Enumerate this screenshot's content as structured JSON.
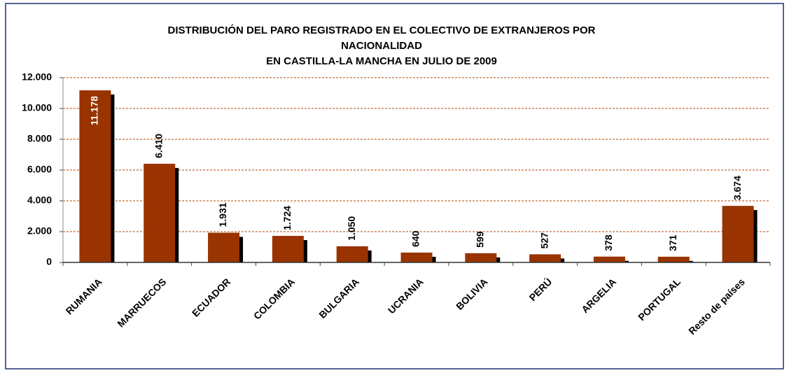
{
  "chart_data": {
    "type": "bar",
    "title": [
      "DISTRIBUCIÓN DEL PARO REGISTRADO EN EL COLECTIVO DE EXTRANJEROS POR",
      "NACIONALIDAD",
      "EN CASTILLA-LA  MANCHA EN JULIO DE 2009"
    ],
    "categories": [
      "RUMANIA",
      "MARRUECOS",
      "ECUADOR",
      "COLOMBIA",
      "BULGARIA",
      "UCRANIA",
      "BOLIVIA",
      "PERÚ",
      "ARGELIA",
      "PORTUGAL",
      "Resto de países"
    ],
    "values": [
      11178,
      6410,
      1931,
      1724,
      1050,
      640,
      599,
      527,
      378,
      371,
      3674
    ],
    "value_labels": [
      "11.178",
      "6.410",
      "1.931",
      "1.724",
      "1.050",
      "640",
      "599",
      "527",
      "378",
      "371",
      "3.674"
    ],
    "color": "#993300",
    "ylim": [
      0,
      12000
    ],
    "yticks": [
      0,
      {
        "value": 2000,
        "label": "2.000"
      },
      {
        "value": 4000,
        "label": "4.000"
      },
      {
        "value": 6000,
        "label": "6.000"
      },
      {
        "value": 8000,
        "label": "8.000"
      },
      {
        "value": 10000,
        "label": "10.000"
      },
      {
        "value": 12000,
        "label": "12.000"
      }
    ],
    "grid": true
  }
}
